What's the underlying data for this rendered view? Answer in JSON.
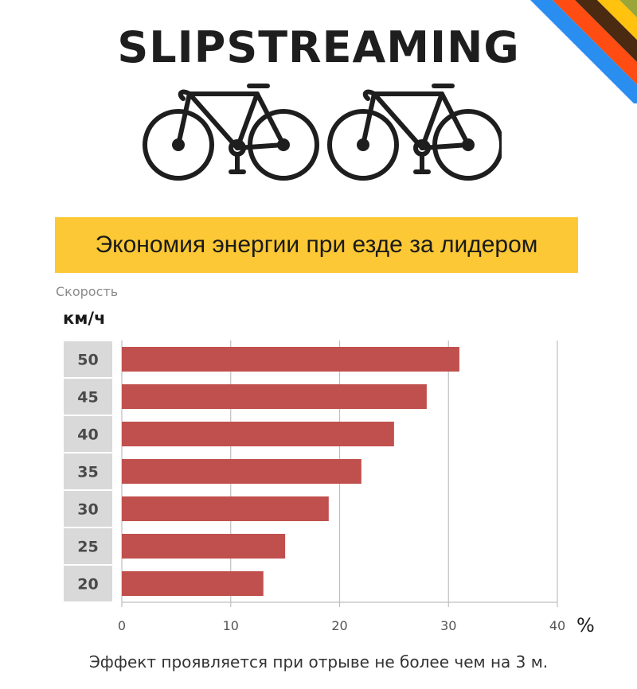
{
  "header": {
    "logo_text": "SLIPSTREAMING",
    "banner_title": "Экономия энергии при езде за лидером"
  },
  "colors": {
    "bar": "#c0504d",
    "banner": "#fcc835",
    "category_box": "#d9d9d9",
    "grid": "#bfbfbf",
    "stripes": [
      "#2a8df0",
      "#ff4c12",
      "#4a2a10",
      "#ffc20e",
      "#9aa63a"
    ]
  },
  "chart_data": {
    "type": "bar",
    "orientation": "horizontal",
    "title": "Экономия энергии при езде за лидером",
    "ylabel": "Скорость",
    "yunit": "км/ч",
    "xlabel": "%",
    "categories": [
      "50",
      "45",
      "40",
      "35",
      "30",
      "25",
      "20"
    ],
    "values": [
      31,
      28,
      25,
      22,
      19,
      15,
      13
    ],
    "xlim": [
      0,
      40
    ],
    "xticks": [
      "0",
      "10",
      "20",
      "30",
      "40"
    ],
    "xtick_values": [
      0,
      10,
      20,
      30,
      40
    ],
    "grid": true,
    "legend": "none"
  },
  "footnote": "Эффект проявляется при отрыве не более чем на 3 м."
}
